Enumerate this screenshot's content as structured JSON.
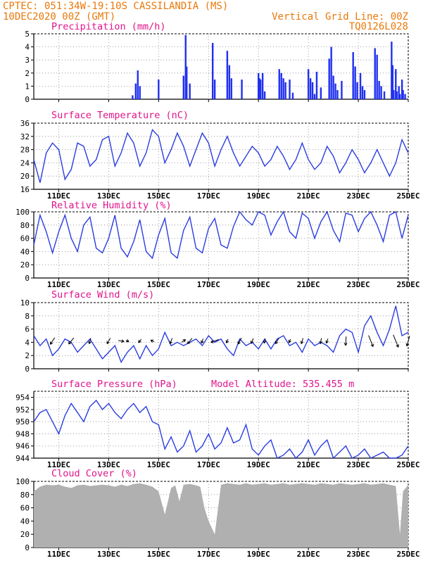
{
  "header": {
    "line1_left": "CPTEC:   051:34W-19:10S  CASSILANDIA (MS)",
    "line2_left": "10DEC2020 00Z (GMT)",
    "line1_right": "Vertical Grid Line: 00Z",
    "line2_right": "TQ0126L028"
  },
  "colors": {
    "header": "#e8790a",
    "panel_title": "#e0148c",
    "line": "#2b3de0",
    "bar": "#2030f0",
    "cloud": "#b0b0b0",
    "arrow": "#000000"
  },
  "x_axis": {
    "tick_labels": [
      "11DEC",
      "13DEC",
      "15DEC",
      "17DEC",
      "19DEC",
      "21DEC",
      "23DEC",
      "25DEC"
    ],
    "range_hours": [
      0,
      360
    ]
  },
  "chart_data": [
    {
      "id": "precip",
      "type": "bar",
      "title": "Precipitation (mm/h)",
      "ylim": [
        0,
        5
      ],
      "yticks": [
        "0",
        "1",
        "2",
        "3",
        "4",
        "5"
      ],
      "x_hours": [
        95,
        98,
        100,
        102,
        120,
        144,
        146,
        147,
        150,
        172,
        174,
        186,
        188,
        190,
        200,
        216,
        217,
        218,
        220,
        222,
        236,
        238,
        240,
        242,
        246,
        249,
        264,
        266,
        268,
        270,
        272,
        276,
        284,
        286,
        288,
        290,
        292,
        296,
        307,
        309,
        311,
        314,
        316,
        318,
        328,
        330,
        332,
        334,
        337,
        344,
        345,
        346,
        348,
        349,
        351,
        352,
        354,
        355,
        357
      ],
      "values": [
        0.3,
        1.2,
        2.2,
        1.0,
        1.5,
        1.8,
        4.9,
        2.5,
        1.2,
        4.3,
        1.5,
        3.7,
        2.6,
        1.6,
        1.5,
        2.0,
        1.6,
        1.5,
        2.0,
        0.6,
        2.3,
        2.0,
        1.6,
        1.3,
        1.5,
        0.5,
        2.3,
        1.6,
        1.3,
        0.4,
        2.1,
        0.9,
        3.1,
        4.0,
        1.8,
        1.2,
        0.7,
        1.4,
        3.6,
        2.5,
        1.3,
        2.0,
        1.0,
        0.7,
        3.9,
        3.4,
        1.4,
        1.0,
        0.6,
        4.4,
        2.6,
        0.7,
        2.3,
        0.6,
        1.0,
        0.4,
        1.5,
        0.7,
        0.4
      ]
    },
    {
      "id": "temp",
      "type": "line",
      "title": "Surface Temperature (nC)",
      "ylim": [
        16,
        36
      ],
      "yticks": [
        "16",
        "20",
        "24",
        "28",
        "32",
        "36"
      ],
      "x_hours": [
        0,
        6,
        12,
        18,
        24,
        30,
        36,
        42,
        48,
        54,
        60,
        66,
        72,
        78,
        84,
        90,
        96,
        102,
        108,
        114,
        120,
        126,
        132,
        138,
        144,
        150,
        156,
        162,
        168,
        174,
        180,
        186,
        192,
        198,
        204,
        210,
        216,
        222,
        228,
        234,
        240,
        246,
        252,
        258,
        264,
        270,
        276,
        282,
        288,
        294,
        300,
        306,
        312,
        318,
        324,
        330,
        336,
        342,
        348,
        354,
        360
      ],
      "values": [
        25,
        18,
        27,
        30,
        28,
        19,
        22,
        30,
        29,
        23,
        25,
        31,
        32,
        23,
        27,
        33,
        30,
        23,
        27,
        34,
        32,
        24,
        28,
        33,
        29,
        23,
        28,
        33,
        30,
        23,
        28,
        32,
        27,
        23,
        26,
        29,
        27,
        23,
        25,
        29,
        26,
        22,
        25,
        30,
        25,
        22,
        24,
        29,
        26,
        21,
        24,
        28,
        25,
        21,
        24,
        28,
        24,
        20,
        24,
        31,
        27
      ]
    },
    {
      "id": "rh",
      "type": "line",
      "title": "Relative Humidity (%)",
      "ylim": [
        0,
        100
      ],
      "yticks": [
        "0",
        "20",
        "40",
        "60",
        "80",
        "100"
      ],
      "x_hours": [
        0,
        6,
        12,
        18,
        24,
        30,
        36,
        42,
        48,
        54,
        60,
        66,
        72,
        78,
        84,
        90,
        96,
        102,
        108,
        114,
        120,
        126,
        132,
        138,
        144,
        150,
        156,
        162,
        168,
        174,
        180,
        186,
        192,
        198,
        204,
        210,
        216,
        222,
        228,
        234,
        240,
        246,
        252,
        258,
        264,
        270,
        276,
        282,
        288,
        294,
        300,
        306,
        312,
        318,
        324,
        330,
        336,
        342,
        348,
        354,
        360
      ],
      "values": [
        50,
        95,
        70,
        38,
        70,
        95,
        60,
        40,
        80,
        92,
        45,
        38,
        60,
        95,
        45,
        32,
        55,
        88,
        40,
        30,
        65,
        90,
        38,
        30,
        72,
        92,
        45,
        38,
        75,
        90,
        50,
        45,
        78,
        100,
        88,
        80,
        100,
        95,
        65,
        85,
        100,
        70,
        60,
        98,
        90,
        60,
        85,
        100,
        72,
        55,
        98,
        95,
        70,
        90,
        100,
        80,
        55,
        95,
        100,
        60,
        95
      ]
    },
    {
      "id": "wind",
      "type": "line",
      "title": "Surface Wind (m/s)",
      "ylim": [
        0,
        10
      ],
      "yticks": [
        "0",
        "2",
        "4",
        "6",
        "8",
        "10"
      ],
      "x_hours": [
        0,
        6,
        12,
        18,
        24,
        30,
        36,
        42,
        48,
        54,
        60,
        66,
        72,
        78,
        84,
        90,
        96,
        102,
        108,
        114,
        120,
        126,
        132,
        138,
        144,
        150,
        156,
        162,
        168,
        174,
        180,
        186,
        192,
        198,
        204,
        210,
        216,
        222,
        228,
        234,
        240,
        246,
        252,
        258,
        264,
        270,
        276,
        282,
        288,
        294,
        300,
        306,
        312,
        318,
        324,
        330,
        336,
        342,
        348,
        354,
        360
      ],
      "values": [
        5.0,
        3.5,
        4.5,
        2.0,
        3.0,
        4.5,
        4.0,
        2.5,
        3.5,
        4.5,
        3.0,
        1.5,
        2.5,
        3.5,
        1.0,
        2.5,
        3.5,
        1.5,
        3.5,
        2.0,
        3.0,
        5.5,
        3.5,
        4.0,
        3.5,
        4.0,
        4.5,
        3.5,
        5.0,
        4.0,
        4.5,
        3.0,
        2.0,
        4.5,
        3.5,
        4.0,
        3.0,
        4.5,
        3.0,
        4.5,
        5.0,
        3.5,
        4.0,
        2.5,
        4.5,
        3.5,
        4.0,
        3.5,
        2.5,
        5.0,
        6.0,
        5.5,
        2.5,
        6.5,
        8.0,
        5.5,
        3.5,
        6.0,
        9.5,
        5.0,
        5.5
      ],
      "arrows": [
        {
          "h": 18,
          "u": -0.8,
          "v": -1.2
        },
        {
          "h": 36,
          "u": -0.9,
          "v": -1.1
        },
        {
          "h": 54,
          "u": -0.3,
          "v": -1.0
        },
        {
          "h": 72,
          "u": -0.6,
          "v": -1.0
        },
        {
          "h": 84,
          "u": 1.0,
          "v": -0.2
        },
        {
          "h": 90,
          "u": 0.5,
          "v": -0.3
        },
        {
          "h": 102,
          "u": -0.5,
          "v": -0.6
        },
        {
          "h": 114,
          "u": -0.6,
          "v": 0.3
        },
        {
          "h": 132,
          "u": -0.4,
          "v": -1.0
        },
        {
          "h": 144,
          "u": 0.7,
          "v": 0.5
        },
        {
          "h": 150,
          "u": -0.8,
          "v": -1.0
        },
        {
          "h": 162,
          "u": -0.3,
          "v": -0.8
        },
        {
          "h": 174,
          "u": -1.4,
          "v": -0.5
        },
        {
          "h": 186,
          "u": -0.3,
          "v": -0.7
        },
        {
          "h": 198,
          "u": -0.6,
          "v": -1.1
        },
        {
          "h": 210,
          "u": -0.4,
          "v": -0.9
        },
        {
          "h": 222,
          "u": -0.2,
          "v": -0.8
        },
        {
          "h": 234,
          "u": -0.6,
          "v": -1.0
        },
        {
          "h": 246,
          "u": -0.3,
          "v": -0.6
        },
        {
          "h": 258,
          "u": -0.3,
          "v": -1.0
        },
        {
          "h": 276,
          "u": -0.2,
          "v": -1.0
        },
        {
          "h": 282,
          "u": -0.3,
          "v": -0.8
        },
        {
          "h": 300,
          "u": -0.1,
          "v": -1.6
        },
        {
          "h": 324,
          "u": 0.8,
          "v": -2.0
        },
        {
          "h": 348,
          "u": 0.9,
          "v": -2.2
        },
        {
          "h": 360,
          "u": -0.5,
          "v": -1.8
        }
      ]
    },
    {
      "id": "pres",
      "type": "line",
      "title": "Surface Pressure (hPa)",
      "subtitle": "Model Altitude: 535.455 m",
      "ylim": [
        944,
        955
      ],
      "yticks": [
        "944",
        "946",
        "948",
        "950",
        "952",
        "954"
      ],
      "x_hours": [
        0,
        6,
        12,
        18,
        24,
        30,
        36,
        42,
        48,
        54,
        60,
        66,
        72,
        78,
        84,
        90,
        96,
        102,
        108,
        114,
        120,
        126,
        132,
        138,
        144,
        150,
        156,
        162,
        168,
        174,
        180,
        186,
        192,
        198,
        204,
        210,
        216,
        222,
        228,
        234,
        240,
        246,
        252,
        258,
        264,
        270,
        276,
        282,
        288,
        294,
        300,
        306,
        312,
        318,
        324,
        330,
        336,
        342,
        348,
        354,
        360
      ],
      "values": [
        950.0,
        951.5,
        952.0,
        950.0,
        948.0,
        951.0,
        953.0,
        951.5,
        950.0,
        952.5,
        953.5,
        952.0,
        953.0,
        951.5,
        950.5,
        952.0,
        953.0,
        951.5,
        952.5,
        950.0,
        949.5,
        945.5,
        947.5,
        945.0,
        946.0,
        948.5,
        945.0,
        946.0,
        948.0,
        945.5,
        946.5,
        949.0,
        946.5,
        947.0,
        949.5,
        945.5,
        944.5,
        946.0,
        947.0,
        944.0,
        944.5,
        945.5,
        944.0,
        945.0,
        947.0,
        944.5,
        946.0,
        947.0,
        944.0,
        945.0,
        946.0,
        944.0,
        944.5,
        945.5,
        944.0,
        944.5,
        945.0,
        944.0,
        944.0,
        944.5,
        946.0
      ]
    },
    {
      "id": "cloud",
      "type": "area",
      "title": "Cloud Cover (%)",
      "ylim": [
        0,
        100
      ],
      "yticks": [
        "0",
        "20",
        "40",
        "60",
        "80",
        "100"
      ],
      "x_hours": [
        0,
        6,
        12,
        18,
        24,
        30,
        36,
        42,
        48,
        54,
        60,
        66,
        72,
        78,
        84,
        90,
        96,
        102,
        108,
        114,
        120,
        126,
        132,
        136,
        140,
        144,
        150,
        156,
        160,
        164,
        168,
        174,
        180,
        186,
        192,
        198,
        204,
        210,
        216,
        222,
        228,
        234,
        240,
        246,
        252,
        258,
        264,
        270,
        276,
        282,
        288,
        294,
        300,
        306,
        312,
        318,
        324,
        330,
        336,
        342,
        348,
        352,
        355,
        360
      ],
      "values": [
        85,
        92,
        95,
        94,
        95,
        92,
        90,
        94,
        95,
        93,
        94,
        95,
        94,
        92,
        95,
        93,
        96,
        97,
        95,
        92,
        85,
        50,
        90,
        94,
        70,
        95,
        96,
        94,
        92,
        60,
        40,
        20,
        95,
        97,
        96,
        95,
        97,
        95,
        96,
        97,
        95,
        96,
        97,
        95,
        96,
        97,
        96,
        95,
        97,
        96,
        95,
        97,
        96,
        95,
        96,
        97,
        95,
        96,
        97,
        95,
        93,
        20,
        85,
        95
      ]
    }
  ]
}
